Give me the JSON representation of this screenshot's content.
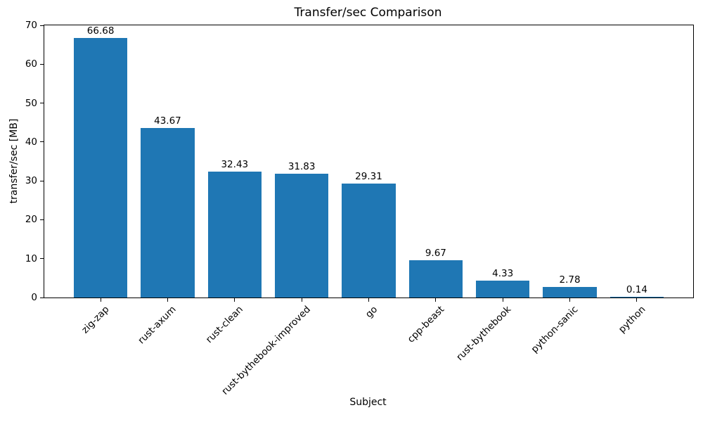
{
  "chart_data": {
    "type": "bar",
    "title": "Transfer/sec Comparison",
    "xlabel": "Subject",
    "ylabel": "transfer/sec [MB]",
    "categories": [
      "zig-zap",
      "rust-axum",
      "rust-clean",
      "rust-bythebook-improved",
      "go",
      "cpp-beast",
      "rust-bythebook",
      "python-sanic",
      "python"
    ],
    "values": [
      66.68,
      43.67,
      32.43,
      31.83,
      29.31,
      9.67,
      4.33,
      2.78,
      0.14
    ],
    "value_labels": [
      "66.68",
      "43.67",
      "32.43",
      "31.83",
      "29.31",
      "9.67",
      "4.33",
      "2.78",
      "0.14"
    ],
    "ylim": [
      0,
      70
    ],
    "yticks": [
      0,
      10,
      20,
      30,
      40,
      50,
      60,
      70
    ],
    "bar_color": "#1f77b4",
    "grid": false,
    "legend": "none"
  }
}
